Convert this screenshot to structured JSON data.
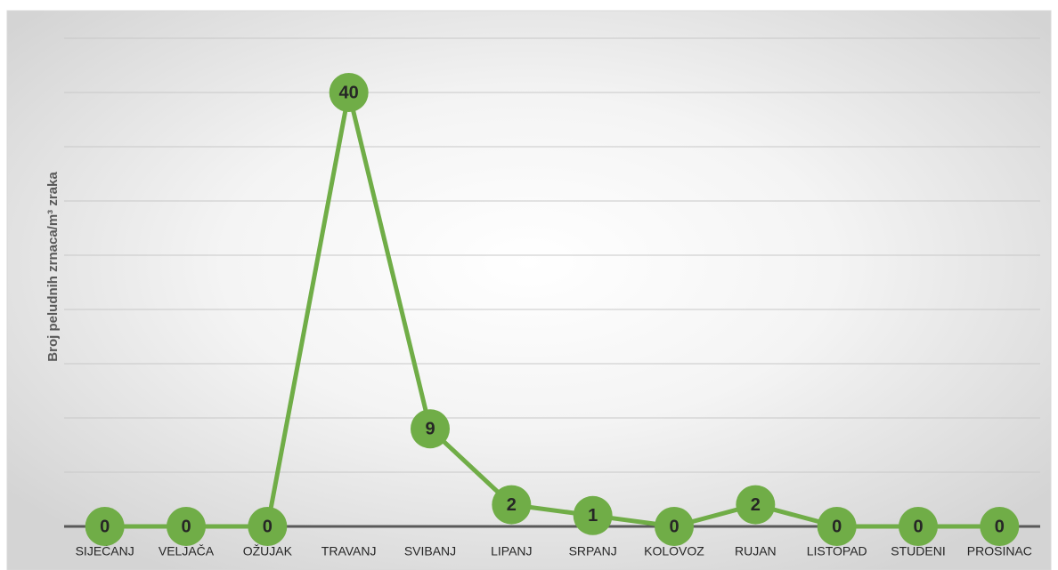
{
  "chart_data": {
    "type": "line",
    "y_axis_label": "Broj peludnih zrnaca/m³ zraka",
    "categories": [
      "SIJEČANJ",
      "VELJAČA",
      "OŽUJAK",
      "TRAVANJ",
      "SVIBANJ",
      "LIPANJ",
      "SRPANJ",
      "KOLOVOZ",
      "RUJAN",
      "LISTOPAD",
      "STUDENI",
      "PROSINAC"
    ],
    "series": [
      {
        "name": "Broj peludnih zrnaca",
        "color": "#70ad47",
        "values": [
          0,
          0,
          0,
          40,
          9,
          2,
          1,
          0,
          2,
          0,
          0,
          0
        ]
      }
    ],
    "ylim": [
      0,
      45
    ],
    "yticks": [
      0,
      5,
      10,
      15,
      20,
      25,
      30,
      35,
      40,
      45
    ],
    "grid": true
  }
}
